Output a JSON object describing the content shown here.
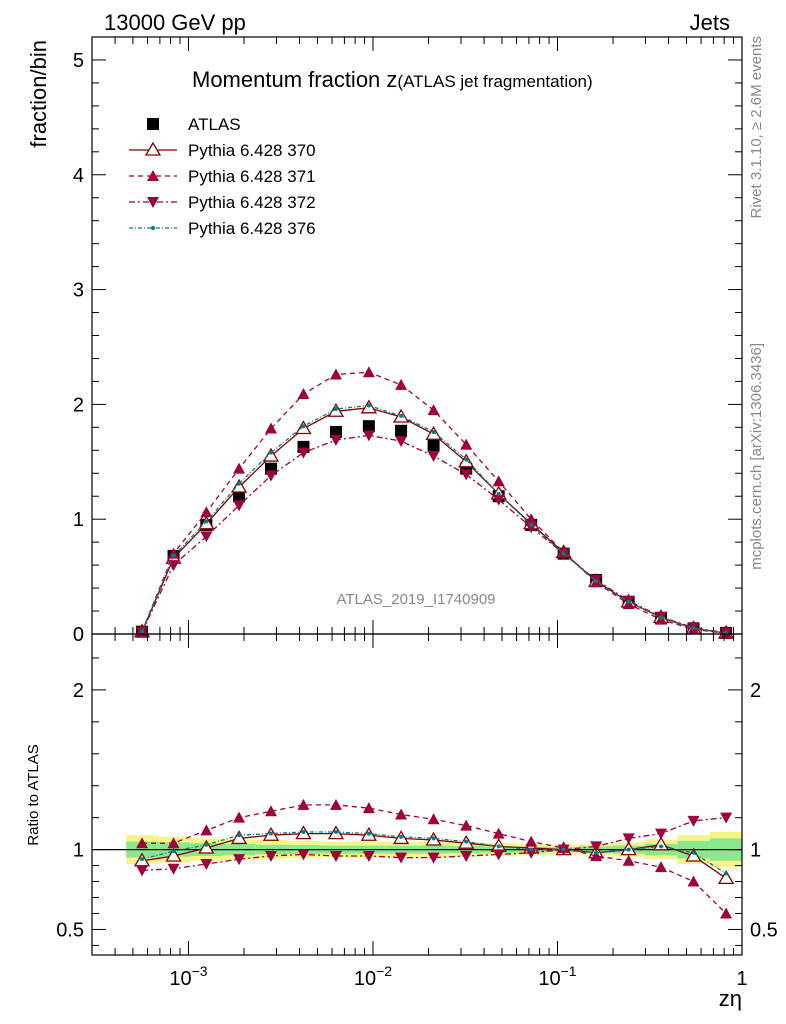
{
  "header": {
    "left": "13000 GeV pp",
    "right": "Jets"
  },
  "side_text": {
    "rivet": "Rivet 3.1.10, ≥ 2.6M events",
    "mcplots": "mcplots.cern.ch [arXiv:1306.3436]"
  },
  "watermark": "ATLAS_2019_I1740909",
  "colors": {
    "atlas": "#000000",
    "p370": "#800000",
    "p371": "#a0003c",
    "p372": "#a0003c",
    "p376": "#008080",
    "band_outer": "#f5f58a",
    "band_inner": "#8ce88c"
  },
  "chart_data": [
    {
      "type": "line",
      "panel": "main",
      "title_main": "Momentum fraction z",
      "title_sub": "(ATLAS jet fragmentation)",
      "ylabel": "fraction/bin",
      "xscale": "log",
      "xlim": [
        0.0003,
        1
      ],
      "ylim": [
        0,
        5.2
      ],
      "yticks": [
        0,
        1,
        2,
        3,
        4,
        5
      ],
      "ytick_labels": [
        "0",
        "1",
        "2",
        "3",
        "4",
        "5"
      ],
      "legend_position": "top-left",
      "x": [
        0.00056,
        0.00083,
        0.00125,
        0.00188,
        0.0028,
        0.0042,
        0.0063,
        0.0095,
        0.0142,
        0.0213,
        0.032,
        0.048,
        0.072,
        0.108,
        0.162,
        0.243,
        0.364,
        0.546,
        0.82
      ],
      "series": [
        {
          "name": "ATLAS",
          "key": "atlas",
          "marker": "square",
          "values": [
            0.02,
            0.68,
            0.95,
            1.2,
            1.44,
            1.63,
            1.76,
            1.81,
            1.77,
            1.64,
            1.44,
            1.2,
            0.95,
            0.7,
            0.47,
            0.28,
            0.14,
            0.05,
            0.01
          ]
        },
        {
          "name": "Pythia 6.428 370",
          "key": "p370",
          "marker": "triangle-open",
          "values": [
            0.02,
            0.66,
            0.96,
            1.28,
            1.55,
            1.79,
            1.94,
            1.97,
            1.89,
            1.74,
            1.5,
            1.22,
            0.96,
            0.71,
            0.46,
            0.28,
            0.145,
            0.048,
            0.008
          ]
        },
        {
          "name": "Pythia 6.428 371",
          "key": "p371",
          "marker": "triangle-up",
          "values": [
            0.021,
            0.7,
            1.06,
            1.44,
            1.79,
            2.09,
            2.26,
            2.28,
            2.17,
            1.95,
            1.65,
            1.33,
            1.0,
            0.71,
            0.45,
            0.26,
            0.125,
            0.04,
            0.006
          ]
        },
        {
          "name": "Pythia 6.428 372",
          "key": "p372",
          "marker": "triangle-down",
          "values": [
            0.017,
            0.6,
            0.85,
            1.12,
            1.38,
            1.58,
            1.69,
            1.73,
            1.68,
            1.55,
            1.39,
            1.17,
            0.93,
            0.7,
            0.47,
            0.29,
            0.15,
            0.055,
            0.0115
          ]
        },
        {
          "name": "Pythia 6.428 376",
          "key": "p376",
          "marker": "dot",
          "values": [
            0.02,
            0.68,
            0.98,
            1.31,
            1.58,
            1.81,
            1.96,
            1.99,
            1.9,
            1.76,
            1.52,
            1.22,
            0.95,
            0.7,
            0.46,
            0.28,
            0.143,
            0.05,
            0.0085
          ]
        }
      ]
    },
    {
      "type": "line",
      "panel": "ratio",
      "ylabel": "Ratio to ATLAS",
      "xlabel": "zη",
      "xscale": "log",
      "xlim": [
        0.0003,
        1
      ],
      "ylim": [
        0.34,
        2.35
      ],
      "yticks": [
        0.5,
        1,
        2
      ],
      "ytick_labels": [
        "0.5",
        "1",
        "2"
      ],
      "xticks": [
        0.001,
        0.01,
        0.1,
        1
      ],
      "xtick_labels": [
        "10−3",
        "10−2",
        "10−1",
        "1"
      ],
      "x": [
        0.00056,
        0.00083,
        0.00125,
        0.00188,
        0.0028,
        0.0042,
        0.0063,
        0.0095,
        0.0142,
        0.0213,
        0.032,
        0.048,
        0.072,
        0.108,
        0.162,
        0.243,
        0.364,
        0.546,
        0.82
      ],
      "band_edges": [
        0.00046,
        0.00069,
        0.00102,
        0.00153,
        0.0023,
        0.00345,
        0.0052,
        0.0078,
        0.0116,
        0.0174,
        0.026,
        0.039,
        0.059,
        0.088,
        0.132,
        0.198,
        0.297,
        0.446,
        0.668,
        1.0
      ],
      "band_outer": [
        0.09,
        0.08,
        0.07,
        0.065,
        0.06,
        0.055,
        0.05,
        0.05,
        0.05,
        0.05,
        0.045,
        0.04,
        0.035,
        0.03,
        0.035,
        0.045,
        0.06,
        0.09,
        0.11
      ],
      "band_inner": [
        0.05,
        0.045,
        0.04,
        0.035,
        0.03,
        0.028,
        0.025,
        0.025,
        0.025,
        0.025,
        0.022,
        0.02,
        0.018,
        0.015,
        0.02,
        0.025,
        0.035,
        0.055,
        0.07
      ],
      "series": [
        {
          "name": "Pythia 6.428 370",
          "key": "p370",
          "marker": "triangle-open",
          "values": [
            0.93,
            0.96,
            1.01,
            1.07,
            1.09,
            1.1,
            1.1,
            1.09,
            1.07,
            1.06,
            1.04,
            1.02,
            1.01,
            1.0,
            0.98,
            1.0,
            1.03,
            0.96,
            0.82
          ]
        },
        {
          "name": "Pythia 6.428 371",
          "key": "p371",
          "marker": "triangle-up",
          "values": [
            1.04,
            1.04,
            1.12,
            1.2,
            1.24,
            1.28,
            1.28,
            1.26,
            1.22,
            1.19,
            1.15,
            1.1,
            1.05,
            1.01,
            0.96,
            0.93,
            0.89,
            0.8,
            0.6
          ]
        },
        {
          "name": "Pythia 6.428 372",
          "key": "p372",
          "marker": "triangle-down",
          "values": [
            0.87,
            0.88,
            0.91,
            0.94,
            0.96,
            0.97,
            0.96,
            0.96,
            0.95,
            0.95,
            0.96,
            0.97,
            0.98,
            1.0,
            1.02,
            1.07,
            1.1,
            1.18,
            1.2
          ]
        },
        {
          "name": "Pythia 6.428 376",
          "key": "p376",
          "marker": "dot",
          "values": [
            0.94,
            0.99,
            1.03,
            1.09,
            1.1,
            1.11,
            1.11,
            1.1,
            1.08,
            1.07,
            1.05,
            1.02,
            1.0,
            1.0,
            0.98,
            1.0,
            1.02,
            0.98,
            0.85
          ]
        }
      ]
    }
  ]
}
